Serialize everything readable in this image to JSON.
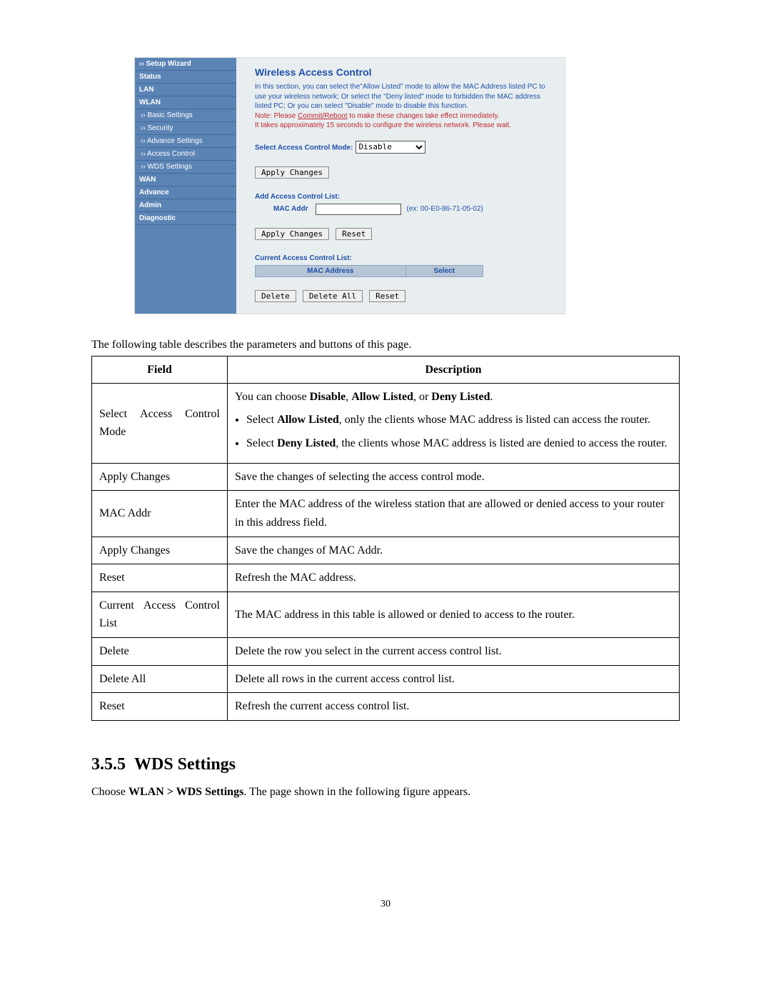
{
  "screenshot": {
    "nav": [
      {
        "label": "›› Setup Wizard",
        "type": "item"
      },
      {
        "label": "Status",
        "type": "item"
      },
      {
        "label": "LAN",
        "type": "item"
      },
      {
        "label": "WLAN",
        "type": "item"
      },
      {
        "label": "›› Basic Settings",
        "type": "sub"
      },
      {
        "label": "›› Security",
        "type": "sub"
      },
      {
        "label": "›› Advance Settings",
        "type": "sub"
      },
      {
        "label": "›› Access Control",
        "type": "sub"
      },
      {
        "label": "›› WDS Settings",
        "type": "sub"
      },
      {
        "label": "WAN",
        "type": "item"
      },
      {
        "label": "Advance",
        "type": "item"
      },
      {
        "label": "Admin",
        "type": "item"
      },
      {
        "label": "Diagnostic",
        "type": "item"
      }
    ],
    "heading": "Wireless Access Control",
    "desc": "In this section, you can select the\"Allow Listed\" mode to allow the MAC Address listed PC to use your wireless network; Or select the \"Deny listed\" mode to forbidden the MAC address listed PC; Or you can select \"Disable\" mode to disable this function.",
    "note_prefix": "Note: Please ",
    "note_commit": "Commit/Reboot",
    "note_suffix": " to make these changes take effect immediately.",
    "note2": "It takes approximately 15 seconds to configure the wireless network. Please wait.",
    "select_label": "Select Access Control Mode:",
    "select_value": "Disable",
    "apply_changes": "Apply Changes",
    "add_acl_label": "Add Access Control List:",
    "mac_addr_label": "MAC Addr",
    "example": "(ex: 00-E0-86-71-05-02)",
    "reset": "Reset",
    "current_acl_label": "Current Access Control List:",
    "th_mac": "MAC Address",
    "th_select": "Select",
    "delete": "Delete",
    "delete_all": "Delete All"
  },
  "intro": "The following table describes the parameters and buttons of this page.",
  "table": {
    "headers": {
      "field": "Field",
      "desc": "Description"
    },
    "rows": {
      "r0": {
        "field": "Select Access Control Mode",
        "intro_a": "You can choose ",
        "intro_b": "Disable",
        "intro_c": ", ",
        "intro_d": "Allow Listed",
        "intro_e": ", or ",
        "intro_f": "Deny Listed",
        "intro_g": ".",
        "li1_a": "Select ",
        "li1_b": "Allow Listed",
        "li1_c": ", only the clients whose MAC address is listed can access the router.",
        "li2_a": "Select ",
        "li2_b": "Deny Listed",
        "li2_c": ", the clients whose MAC address is listed are denied to access the router."
      },
      "r1": {
        "field": "Apply Changes",
        "desc": "Save the changes of selecting the access control mode."
      },
      "r2": {
        "field": "MAC Addr",
        "desc": "Enter the MAC address of the wireless station that are allowed or denied access to your router in this address field."
      },
      "r3": {
        "field": "Apply Changes",
        "desc": "Save the changes of MAC Addr."
      },
      "r4": {
        "field": "Reset",
        "desc": "Refresh the MAC address."
      },
      "r5": {
        "field": "Current Access Control List",
        "desc": "The MAC address in this table is allowed or denied to access to the router."
      },
      "r6": {
        "field": "Delete",
        "desc": "Delete the row you select in the current access control list."
      },
      "r7": {
        "field": "Delete All",
        "desc": "Delete all rows in the current access control list."
      },
      "r8": {
        "field": "Reset",
        "desc": "Refresh the current access control list."
      }
    }
  },
  "section": {
    "num": "3.5.5",
    "title": "WDS Settings",
    "body_a": "Choose ",
    "body_b": "WLAN > WDS Settings",
    "body_c": ". The page shown in the following figure appears."
  },
  "page_num": "30"
}
